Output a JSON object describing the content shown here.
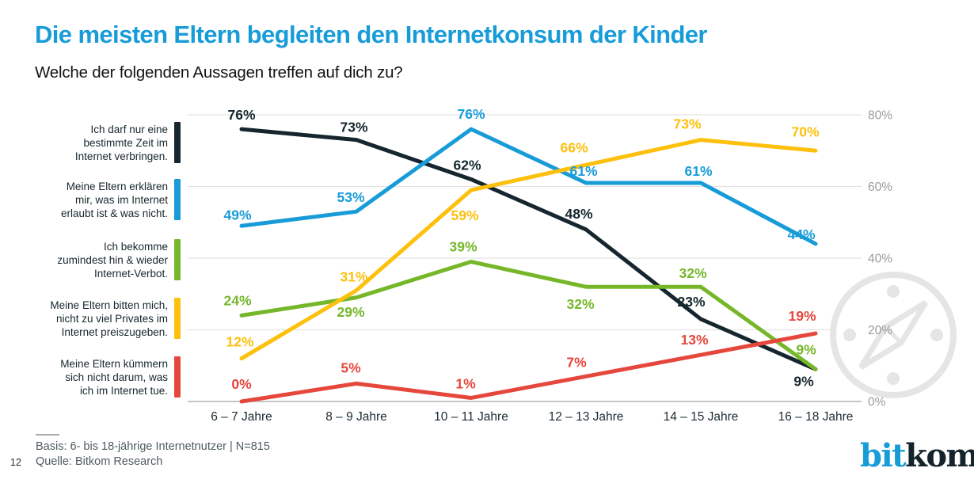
{
  "header": {
    "title": "Die meisten Eltern begleiten den Internetkonsum der Kinder",
    "subtitle": "Welche der folgenden Aussagen treffen auf dich zu?"
  },
  "chart_data": {
    "type": "line",
    "categories": [
      "6 – 7 Jahre",
      "8 – 9 Jahre",
      "10 – 11 Jahre",
      "12 – 13 Jahre",
      "14 – 15 Jahre",
      "16 – 18 Jahre"
    ],
    "series": [
      {
        "name": "Ich darf nur eine\nbestimmte Zeit im\nInternet verbringen.",
        "color": "#15262e",
        "values": [
          76,
          73,
          62,
          48,
          23,
          9
        ]
      },
      {
        "name": "Meine Eltern erklären\nmir, was im Internet\nerlaubt ist & was nicht.",
        "color": "#189cd8",
        "values": [
          49,
          53,
          76,
          61,
          61,
          44
        ]
      },
      {
        "name": "Ich bekomme\nzumindest hin & wieder\nInternet-Verbot.",
        "color": "#76b72a",
        "values": [
          24,
          29,
          39,
          32,
          32,
          9
        ]
      },
      {
        "name": "Meine Eltern bitten mich,\nnicht zu viel Privates im\nInternet preiszugeben.",
        "color": "#fdc00d",
        "values": [
          12,
          31,
          59,
          66,
          73,
          70
        ]
      },
      {
        "name": "Meine Eltern kümmern\nsich nicht darum, was\nich im Internet tue.",
        "color": "#e6473d",
        "values": [
          0,
          5,
          1,
          7,
          13,
          19
        ]
      }
    ],
    "ylabel": "",
    "xlabel": "",
    "ylim": [
      0,
      80
    ],
    "y_ticks": [
      80,
      60,
      40,
      20,
      0
    ],
    "y_tick_suffix": "%",
    "data_label_suffix": "%",
    "grid": true,
    "legend_position": "left",
    "axis_side": "right",
    "watermark_icon": "compass-icon"
  },
  "footer": {
    "basis": "Basis: 6- bis 18-jährige Internetnutzer | N=815",
    "source": "Quelle: Bitkom Research",
    "page_number": "12",
    "logo": {
      "part1": "bit",
      "part2": "kom"
    }
  },
  "colors": {
    "accent_blue": "#189cd8",
    "dark_navy": "#15262e",
    "green": "#76b72a",
    "yellow": "#fdc00d",
    "red": "#e6473d",
    "grid_line": "#e3e3e3",
    "axis_line": "#b3b3b3",
    "tick_text": "#9b9b9b",
    "x_label_text": "#1c2b33",
    "watermark": "#e5e5e5"
  }
}
